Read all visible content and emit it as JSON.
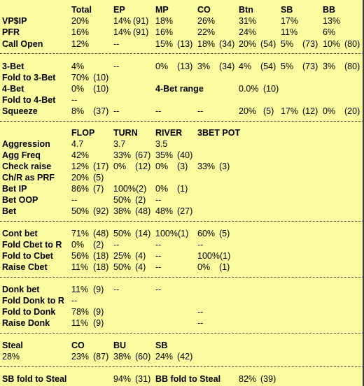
{
  "stats_header": {
    "cols": [
      "Total",
      "EP",
      "MP",
      "CO",
      "Btn",
      "SB",
      "BB"
    ]
  },
  "stats": [
    {
      "label": "VP$IP",
      "bold": true,
      "cells": [
        "20%",
        "14%",
        "(91)",
        "18%",
        "26%",
        "31%",
        "17%",
        "13%"
      ]
    },
    {
      "label": "PFR",
      "bold": true,
      "cells": [
        "16%",
        "14%",
        "(91)",
        "16%",
        "22%",
        "24%",
        "11%",
        "6%"
      ]
    },
    {
      "label": "Call Open",
      "bold": true,
      "cells": [
        "12%",
        "--",
        "15%",
        "(13)",
        "18%",
        "(34)",
        "20%",
        "(54)",
        "5%",
        "(73)",
        "10%",
        "(80)"
      ]
    },
    {
      "label": "3-Bet",
      "bold": true,
      "cells": [
        "4%",
        "--",
        "0%",
        "(13)",
        "3%",
        "(34)",
        "4%",
        "(54)",
        "5%",
        "(73)",
        "3%",
        "(80)"
      ]
    },
    {
      "label": "Fold to 3-Bet",
      "bold": true,
      "cells": [
        "70%",
        "(10)"
      ]
    },
    {
      "label": "4-Bet",
      "bold": true,
      "cells": [
        "0%",
        "(10)",
        "4-Bet range",
        "0.0%",
        "(10)"
      ]
    },
    {
      "label": "Fold to 4-Bet",
      "bold": true,
      "cells": [
        "--"
      ]
    },
    {
      "label": "Squeeze",
      "bold": true,
      "cells": [
        "8%",
        "(37)",
        "--",
        "--",
        "--",
        "20%",
        "(5)",
        "17%",
        "(12)",
        "0%",
        "(20)"
      ]
    }
  ],
  "street_header": {
    "cols": [
      "FLOP",
      "TURN",
      "RIVER",
      "3BET POT"
    ]
  },
  "street": [
    {
      "label": "Aggression",
      "bold": true,
      "cells": [
        "4.7",
        "3.7",
        "3.5"
      ]
    },
    {
      "label": "Agg Freq",
      "bold": true,
      "cells": [
        "42%",
        "33%",
        "(67)",
        "35%",
        "(40)"
      ]
    },
    {
      "label": "Check raise",
      "bold": true,
      "cells": [
        "12%",
        "(17)",
        "0%",
        "(12)",
        "0%",
        "(3)",
        "33%",
        "(3)"
      ]
    },
    {
      "label": "Ch/R as PRF",
      "bold": true,
      "cells": [
        "20%",
        "(5)"
      ]
    },
    {
      "label": "Bet IP",
      "bold": true,
      "cells": [
        "86%",
        "(7)",
        "100%(2)",
        "0%",
        "(1)"
      ]
    },
    {
      "label": "Bet OOP",
      "bold": true,
      "cells": [
        "--",
        "50%",
        "(2)",
        "--"
      ]
    },
    {
      "label": "Bet",
      "bold": true,
      "cells": [
        "50%",
        "(92)",
        "38%",
        "(48)",
        "48%",
        "(27)"
      ]
    }
  ],
  "cbet": [
    {
      "label": "Cont bet",
      "bold": true,
      "cells": [
        "71%",
        "(48)",
        "50%",
        "(14)",
        "100%(1)",
        "60%",
        "(5)"
      ]
    },
    {
      "label": "Fold Cbet to R",
      "bold": true,
      "cells": [
        "0%",
        "(2)",
        "--",
        "--",
        "--"
      ]
    },
    {
      "label": "Fold to Cbet",
      "bold": true,
      "cells": [
        "56%",
        "(18)",
        "25%",
        "(4)",
        "--",
        "100%(1)"
      ]
    },
    {
      "label": "Raise Cbet",
      "bold": true,
      "cells": [
        "11%",
        "(18)",
        "50%",
        "(4)",
        "--",
        "0%",
        "(1)"
      ]
    }
  ],
  "donk": [
    {
      "label": "Donk bet",
      "bold": true,
      "cells": [
        "11%",
        "(9)",
        "--",
        "--"
      ]
    },
    {
      "label": "Fold Donk to R",
      "bold": true,
      "cells": [
        "--"
      ]
    },
    {
      "label": "Fold to Donk",
      "bold": true,
      "cells": [
        "78%",
        "(9)",
        "--"
      ]
    },
    {
      "label": "Raise Donk",
      "bold": true,
      "cells": [
        "11%",
        "(9)",
        "--"
      ]
    }
  ],
  "steal": {
    "label": "Steal",
    "cols": [
      "CO",
      "BU",
      "SB"
    ],
    "total": "28%",
    "cells": [
      "23%",
      "(87)",
      "38%",
      "(60)",
      "24%",
      "(42)"
    ]
  },
  "blind_fold": {
    "sb_label": "SB fold to Steal",
    "sb_value": "94%",
    "sb_count": "(31)",
    "bb_label": "BB fold to Steal",
    "bb_value": "82%",
    "bb_count": "(39)"
  },
  "colors": {
    "background": "#fbfba0",
    "separator": "#555555",
    "text": "#000000"
  }
}
